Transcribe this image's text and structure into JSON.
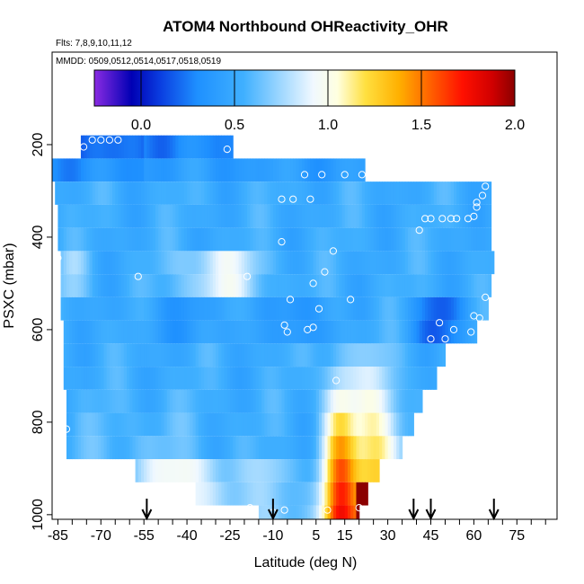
{
  "chart_data": {
    "type": "heatmap",
    "title": "ATOM4 Northbound OHReactivity_OHR",
    "flights_label": "Flts: 7,8,9,10,11,12",
    "dates_label": "MMDD: 0509,0512,0514,0517,0518,0519",
    "xlabel": "Latitude (deg N)",
    "ylabel": "PSXC (mbar)",
    "xlim": [
      -87,
      89
    ],
    "ylim": [
      1010,
      0
    ],
    "x_ticks": [
      -85,
      -70,
      -55,
      -40,
      -25,
      -10,
      5,
      15,
      30,
      45,
      60,
      75
    ],
    "x_tick_labels": [
      "-85",
      "-70",
      "-55",
      "-40",
      "-25",
      "-10",
      "5",
      "15",
      "30",
      "45",
      "60",
      "75"
    ],
    "x_minor_step": 5,
    "y_ticks": [
      200,
      400,
      600,
      800,
      1000
    ],
    "y_tick_labels": [
      "200",
      "400",
      "600",
      "800",
      "1000"
    ],
    "colorbar": {
      "min": -0.25,
      "max": 2.0,
      "ticks": [
        0.0,
        0.5,
        1.0,
        1.5,
        2.0
      ],
      "tick_labels": [
        "0.0",
        "0.5",
        "1.0",
        "1.5",
        "2.0"
      ],
      "stops": [
        [
          -0.25,
          "#8a2be2"
        ],
        [
          -0.05,
          "#0000b4"
        ],
        [
          0.1,
          "#0a3ce0"
        ],
        [
          0.3,
          "#1e90ff"
        ],
        [
          0.55,
          "#40b0ff"
        ],
        [
          0.75,
          "#a0d8ff"
        ],
        [
          0.92,
          "#f0f8ff"
        ],
        [
          1.05,
          "#ffffe0"
        ],
        [
          1.2,
          "#ffe040"
        ],
        [
          1.38,
          "#ffb000"
        ],
        [
          1.55,
          "#ff6000"
        ],
        [
          1.72,
          "#ff1000"
        ],
        [
          1.88,
          "#d00000"
        ],
        [
          2.0,
          "#8b0000"
        ]
      ]
    },
    "bands": [
      {
        "pressure_top": 180,
        "pressure_bottom": 230,
        "lat_start": -77,
        "lat_end": -24
      },
      {
        "pressure_top": 230,
        "pressure_bottom": 280,
        "lat_start": -87,
        "lat_end": 22
      },
      {
        "pressure_top": 280,
        "pressure_bottom": 330,
        "lat_start": -86,
        "lat_end": 66
      },
      {
        "pressure_top": 330,
        "pressure_bottom": 380,
        "lat_start": -85,
        "lat_end": 66
      },
      {
        "pressure_top": 380,
        "pressure_bottom": 430,
        "lat_start": -85,
        "lat_end": 66
      },
      {
        "pressure_top": 430,
        "pressure_bottom": 480,
        "lat_start": -84,
        "lat_end": 67
      },
      {
        "pressure_top": 480,
        "pressure_bottom": 530,
        "lat_start": -84,
        "lat_end": 66
      },
      {
        "pressure_top": 530,
        "pressure_bottom": 580,
        "lat_start": -84,
        "lat_end": 65
      },
      {
        "pressure_top": 580,
        "pressure_bottom": 630,
        "lat_start": -83,
        "lat_end": 61
      },
      {
        "pressure_top": 630,
        "pressure_bottom": 680,
        "lat_start": -83,
        "lat_end": 50
      },
      {
        "pressure_top": 680,
        "pressure_bottom": 730,
        "lat_start": -83,
        "lat_end": 47
      },
      {
        "pressure_top": 730,
        "pressure_bottom": 780,
        "lat_start": -82,
        "lat_end": 42
      },
      {
        "pressure_top": 780,
        "pressure_bottom": 830,
        "lat_start": -82,
        "lat_end": 39
      },
      {
        "pressure_top": 830,
        "pressure_bottom": 880,
        "lat_start": -82,
        "lat_end": 35
      },
      {
        "pressure_top": 880,
        "pressure_bottom": 930,
        "lat_start": -58,
        "lat_end": 27
      },
      {
        "pressure_top": 930,
        "pressure_bottom": 980,
        "lat_start": -37,
        "lat_end": 23
      },
      {
        "pressure_top": 980,
        "pressure_bottom": 1010,
        "lat_start": -15,
        "lat_end": 20
      }
    ],
    "observations": [
      {
        "lat": -86,
        "p": 215
      },
      {
        "lat": -84,
        "p": 215
      },
      {
        "lat": -76,
        "p": 205
      },
      {
        "lat": -73,
        "p": 190
      },
      {
        "lat": -70,
        "p": 190
      },
      {
        "lat": -67,
        "p": 190
      },
      {
        "lat": -64,
        "p": 190
      },
      {
        "lat": -26,
        "p": 210
      },
      {
        "lat": 1,
        "p": 265
      },
      {
        "lat": 7,
        "p": 265
      },
      {
        "lat": 15,
        "p": 265
      },
      {
        "lat": 21,
        "p": 265
      },
      {
        "lat": -7,
        "p": 318
      },
      {
        "lat": -3,
        "p": 318
      },
      {
        "lat": 3,
        "p": 318
      },
      {
        "lat": 64,
        "p": 290
      },
      {
        "lat": 63,
        "p": 310
      },
      {
        "lat": 61,
        "p": 325
      },
      {
        "lat": 61,
        "p": 335
      },
      {
        "lat": 60,
        "p": 355
      },
      {
        "lat": 43,
        "p": 360
      },
      {
        "lat": 45,
        "p": 360
      },
      {
        "lat": 49,
        "p": 360
      },
      {
        "lat": 52,
        "p": 360
      },
      {
        "lat": 54,
        "p": 360
      },
      {
        "lat": 58,
        "p": 360
      },
      {
        "lat": 41,
        "p": 385
      },
      {
        "lat": -7,
        "p": 410
      },
      {
        "lat": 11,
        "p": 430
      },
      {
        "lat": -85,
        "p": 445
      },
      {
        "lat": 8,
        "p": 475
      },
      {
        "lat": -57,
        "p": 485
      },
      {
        "lat": -19,
        "p": 485
      },
      {
        "lat": 4,
        "p": 500
      },
      {
        "lat": -4,
        "p": 535
      },
      {
        "lat": 17,
        "p": 535
      },
      {
        "lat": 6,
        "p": 555
      },
      {
        "lat": 64,
        "p": 530
      },
      {
        "lat": 60,
        "p": 570
      },
      {
        "lat": 62,
        "p": 575
      },
      {
        "lat": -6,
        "p": 590
      },
      {
        "lat": -5,
        "p": 605
      },
      {
        "lat": 2,
        "p": 600
      },
      {
        "lat": 4,
        "p": 595
      },
      {
        "lat": 48,
        "p": 585
      },
      {
        "lat": 53,
        "p": 600
      },
      {
        "lat": 59,
        "p": 605
      },
      {
        "lat": 45,
        "p": 620
      },
      {
        "lat": 50,
        "p": 620
      },
      {
        "lat": 12,
        "p": 710
      },
      {
        "lat": -82,
        "p": 815
      },
      {
        "lat": -18,
        "p": 985
      },
      {
        "lat": -10,
        "p": 995
      },
      {
        "lat": -6,
        "p": 990
      },
      {
        "lat": 9,
        "p": 990
      },
      {
        "lat": 20,
        "p": 985
      }
    ],
    "arrows": [
      -54,
      -10,
      39,
      45,
      67
    ]
  }
}
